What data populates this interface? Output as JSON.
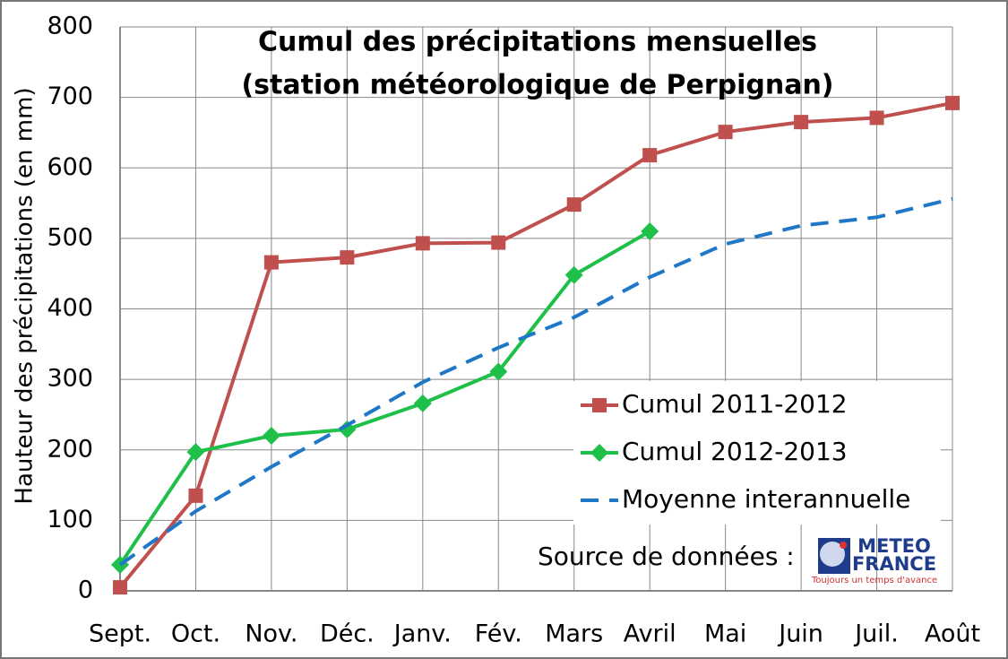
{
  "chart_data": {
    "type": "line",
    "title": [
      "Cumul des précipitations mensuelles",
      "(station météorologique de Perpignan)"
    ],
    "y_label": "Hauteur des précipitations (en mm)",
    "categories": [
      "Sept.",
      "Oct.",
      "Nov.",
      "Déc.",
      "Janv.",
      "Fév.",
      "Mars",
      "Avril",
      "Mai",
      "Juin",
      "Juil.",
      "Août"
    ],
    "series": [
      {
        "name": "Cumul 2011-2012",
        "color": "#c0504d",
        "marker": "square",
        "dash": false,
        "values": [
          5,
          135,
          466,
          473,
          493,
          494,
          548,
          618,
          651,
          665,
          671,
          692
        ]
      },
      {
        "name": "Cumul 2012-2013",
        "color": "#1fc04a",
        "marker": "diamond",
        "dash": false,
        "values": [
          37,
          197,
          220,
          229,
          266,
          311,
          448,
          510,
          null,
          null,
          null,
          null
        ]
      },
      {
        "name": "Moyenne interannuelle",
        "color": "#1f77c8",
        "marker": "none",
        "dash": true,
        "values": [
          37,
          113,
          176,
          235,
          296,
          345,
          388,
          445,
          492,
          518,
          530,
          556
        ]
      }
    ],
    "ylim": [
      0,
      800
    ],
    "yticks": [
      0,
      100,
      200,
      300,
      400,
      500,
      600,
      700,
      800
    ],
    "grid": true,
    "legend": "lower right",
    "source": "Source de données :",
    "logo_lines": [
      "METEO",
      "FRANCE"
    ],
    "logo_tagline": "Toujours un temps d'avance"
  }
}
